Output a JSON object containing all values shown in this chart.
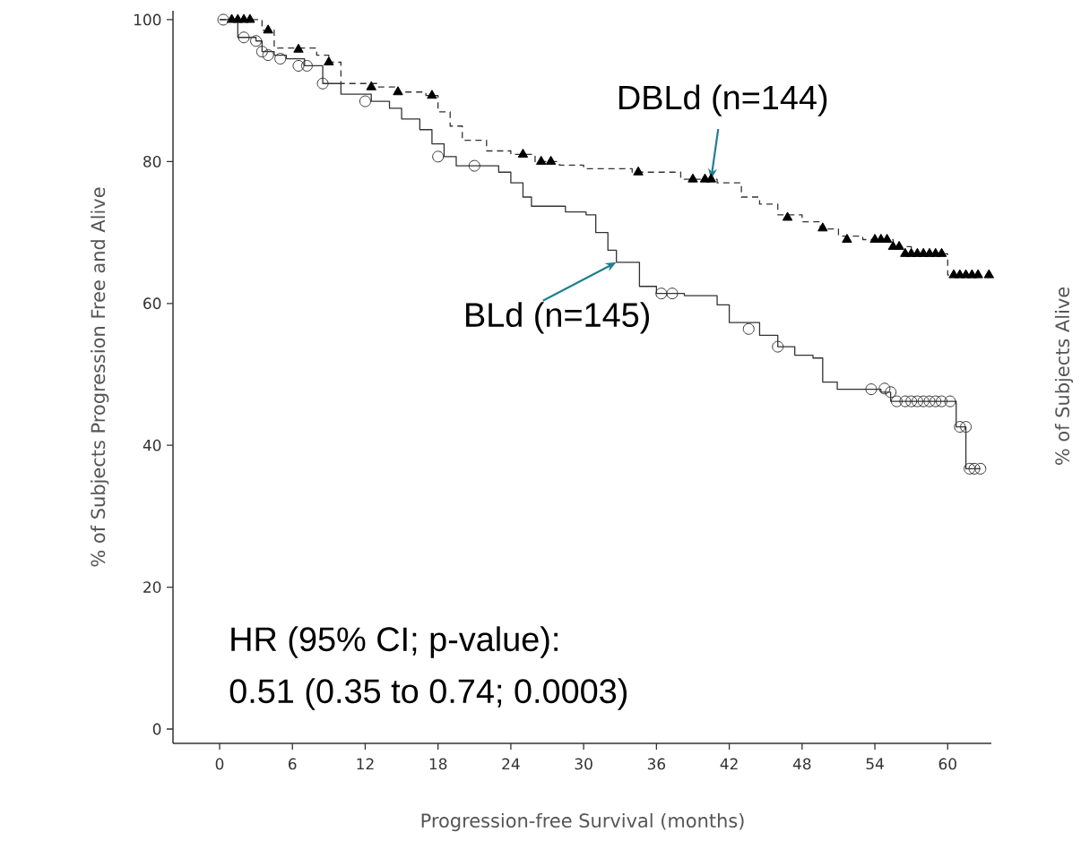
{
  "chart_data": {
    "type": "step",
    "xlabel": "Progression-free Survival (months)",
    "ylabel": "% of Subjects Progression Free and Alive",
    "y2label": "% of Subjects Alive",
    "xlim": [
      -3.84,
      63.6
    ],
    "ylim": [
      -2.02,
      101.26
    ],
    "xticks": [
      0,
      6,
      12,
      18,
      24,
      30,
      36,
      42,
      48,
      54,
      60
    ],
    "yticks": [
      0,
      20,
      40,
      60,
      80,
      100
    ],
    "series": [
      {
        "color": "#333333",
        "line_style": "dashed",
        "x": [
          0,
          3.5,
          4.5,
          8,
          9,
          10,
          13,
          14.5,
          17,
          18,
          19,
          20,
          22,
          24,
          26,
          28,
          30,
          34,
          38,
          41,
          43,
          44.5,
          46,
          48,
          49.5,
          51,
          53,
          55.5,
          57,
          60,
          63.5
        ],
        "values": [
          100,
          98.5,
          96,
          95,
          94,
          91,
          90.5,
          89.8,
          89.3,
          87,
          85,
          83,
          81.5,
          81,
          80,
          79.5,
          79,
          78.5,
          77.5,
          77,
          75,
          74,
          72.5,
          71.5,
          70.5,
          69.5,
          69,
          68,
          67,
          64,
          64
        ]
      },
      {
        "type": "scatter",
        "color": "#000000",
        "marker": "triangle",
        "x": [
          1,
          1.5,
          2,
          2.5,
          4,
          6.5,
          9,
          12.5,
          14.7,
          17.5,
          25,
          26.5,
          27.3,
          34.5,
          39,
          40,
          40.5,
          46.8,
          49.7,
          51.7,
          54,
          54.5,
          55,
          55.5,
          56,
          56.5,
          57,
          57.5,
          58,
          58.5,
          59,
          59.5,
          60.5,
          61,
          61.5,
          62,
          62.5,
          63.4
        ],
        "values": [
          100,
          100,
          100,
          100,
          98.5,
          95.8,
          94,
          90.5,
          89.8,
          89.3,
          81,
          80,
          80,
          78.5,
          77.5,
          77.5,
          77.5,
          72.1,
          70.6,
          69,
          69,
          69,
          69,
          68,
          68,
          67,
          67,
          67,
          67,
          67,
          67,
          67,
          64,
          64,
          64,
          64,
          64,
          64
        ]
      },
      {
        "color": "#333333",
        "line_style": "solid",
        "x": [
          0,
          1.5,
          3,
          3.5,
          4.5,
          5.5,
          7,
          8.5,
          10,
          12.5,
          14,
          15,
          16.5,
          17.5,
          18.5,
          19.5,
          23,
          24,
          25,
          25.7,
          28.5,
          30.2,
          31,
          32,
          32.7,
          34.6,
          36,
          38.3,
          41,
          42,
          44.5,
          46,
          47.4,
          48.9,
          49.7,
          50.9,
          54.5,
          55.3,
          60.7,
          61.5,
          62.7
        ],
        "values": [
          100,
          97.5,
          97,
          95.5,
          95,
          94.5,
          93.5,
          91,
          89.5,
          88.5,
          87.5,
          86,
          84.5,
          82.5,
          80.7,
          79.4,
          78.5,
          77,
          75,
          73.7,
          72.9,
          72.5,
          70,
          67.5,
          65.8,
          62.4,
          61.4,
          61.1,
          59.8,
          57.3,
          55.5,
          53.9,
          52.7,
          52.3,
          48.9,
          47.9,
          47.5,
          46.2,
          42.6,
          36.7,
          36.7
        ]
      },
      {
        "type": "scatter",
        "color": "#333333",
        "marker": "circle",
        "x": [
          0.3,
          2,
          3,
          3.5,
          4,
          5,
          6.5,
          7.2,
          8.5,
          12,
          18,
          21,
          36.4,
          37.3,
          43.6,
          46,
          53.7,
          54.8,
          55.3,
          55.8,
          56.5,
          57,
          57.5,
          58,
          58.5,
          59,
          59.5,
          60.2,
          61,
          61.5,
          61.8,
          62.2,
          62.7
        ],
        "values": [
          100,
          97.5,
          97,
          95.5,
          95,
          94.5,
          93.5,
          93.5,
          91,
          88.5,
          80.7,
          79.4,
          61.4,
          61.4,
          56.4,
          53.9,
          47.9,
          48,
          47.5,
          46.2,
          46.2,
          46.2,
          46.2,
          46.2,
          46.2,
          46.2,
          46.2,
          46.2,
          42.6,
          42.6,
          36.7,
          36.7,
          36.7
        ]
      }
    ],
    "annotations": [
      {
        "text": "DBLd (n=144)",
        "x": 40.5,
        "y": 77.5
      },
      {
        "text": "BLd (n=145)",
        "x": 32.7,
        "y": 65.8
      },
      "HR (95% CI; p-value):",
      "0.51 (0.35 to 0.74; 0.0003)"
    ]
  }
}
